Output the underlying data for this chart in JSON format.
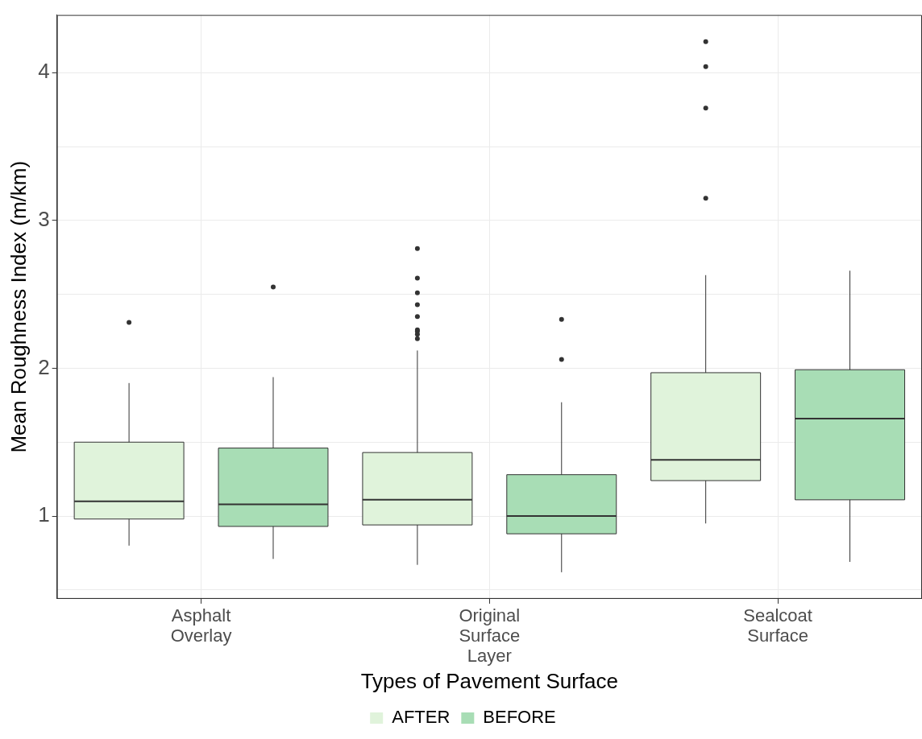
{
  "chart_data": {
    "type": "box",
    "xlabel": "Types of Pavement Surface",
    "ylabel": "Mean Roughness Index (m/km)",
    "categories": [
      "Asphalt\nOverlay",
      "Original\nSurface\nLayer",
      "Sealcoat\nSurface"
    ],
    "series": [
      {
        "name": "AFTER",
        "color": "#e0f3db",
        "boxes": [
          {
            "low": 0.8,
            "q1": 0.98,
            "median": 1.1,
            "q3": 1.5,
            "high": 1.9,
            "outliers": [
              2.31
            ]
          },
          {
            "low": 0.67,
            "q1": 0.94,
            "median": 1.11,
            "q3": 1.43,
            "high": 2.12,
            "outliers": [
              2.81,
              2.61,
              2.51,
              2.43,
              2.35,
              2.26,
              2.25,
              2.23,
              2.2
            ]
          },
          {
            "low": 0.95,
            "q1": 1.24,
            "median": 1.38,
            "q3": 1.97,
            "high": 2.63,
            "outliers": [
              4.21,
              4.04,
              3.76,
              3.15
            ]
          }
        ]
      },
      {
        "name": "BEFORE",
        "color": "#a8ddb5",
        "boxes": [
          {
            "low": 0.71,
            "q1": 0.93,
            "median": 1.08,
            "q3": 1.46,
            "high": 1.94,
            "outliers": [
              2.55
            ]
          },
          {
            "low": 0.62,
            "q1": 0.88,
            "median": 1.0,
            "q3": 1.28,
            "high": 1.77,
            "outliers": [
              2.33,
              2.06
            ]
          },
          {
            "low": 0.69,
            "q1": 1.11,
            "median": 1.66,
            "q3": 1.99,
            "high": 2.66
          }
        ]
      }
    ],
    "ylim": [
      0.44,
      4.39
    ],
    "yticks": [
      {
        "value": 0.5,
        "label": null
      },
      1,
      {
        "value": 1.5,
        "label": null
      },
      2,
      {
        "value": 2.5,
        "label": null
      },
      3,
      {
        "value": 3.5,
        "label": null
      },
      4
    ],
    "grid": true,
    "legend": "bottom"
  }
}
